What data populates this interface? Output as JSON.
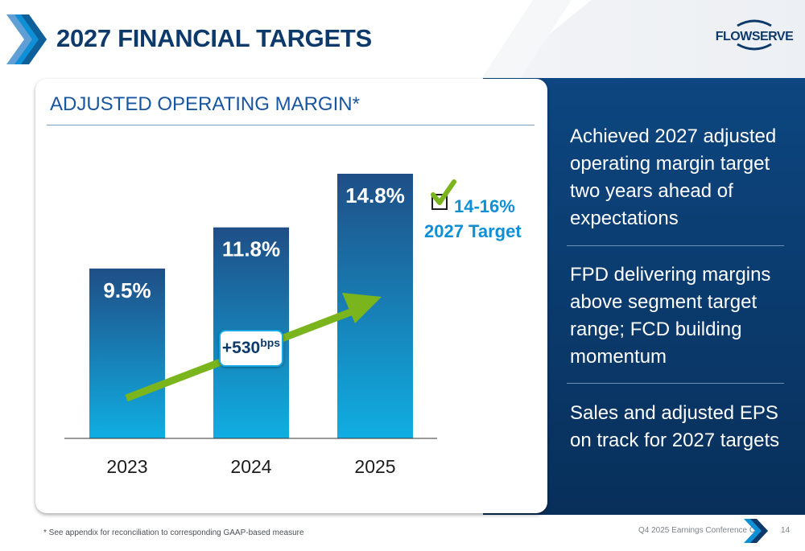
{
  "slide": {
    "title": "2027 FINANCIAL TARGETS",
    "logo_text": "FLOWSERVE",
    "card_title": "ADJUSTED OPERATING MARGIN*",
    "target_range": "14-16%",
    "target_label": "2027 Target",
    "bps_value": "+530",
    "bps_unit": "bps",
    "bullets": [
      "Achieved 2027 adjusted operating margin target two years ahead of expectations",
      "FPD delivering margins above segment target range; FCD building momentum",
      "Sales and adjusted EPS on track for 2027 targets"
    ],
    "footnote": "* See appendix for reconciliation to corresponding GAAP-based measure",
    "event": "Q4 2025 Earnings Conference Call",
    "page": "14"
  },
  "colors": {
    "title": "#0d3a6a",
    "accent_blue": "#0f8fd6",
    "arrow_green": "#7ab51d",
    "panel_dark": "#0a3a6c",
    "bar_top": "#1f4e86",
    "bar_bottom": "#10aee2"
  },
  "icons": {
    "title_mark": "double-chevron-icon",
    "target_check": "checkmark-icon",
    "footer_mark": "chevron-icon"
  },
  "chart_data": {
    "type": "bar",
    "categories": [
      "2023",
      "2024",
      "2025"
    ],
    "values": [
      9.5,
      11.8,
      14.8
    ],
    "value_labels": [
      "9.5%",
      "11.8%",
      "14.8%"
    ],
    "ylabel": "",
    "xlabel": "",
    "ylim": [
      0,
      14.8
    ],
    "grid": false,
    "annotations": [
      "+530bps",
      "14-16%",
      "2027 Target"
    ]
  }
}
